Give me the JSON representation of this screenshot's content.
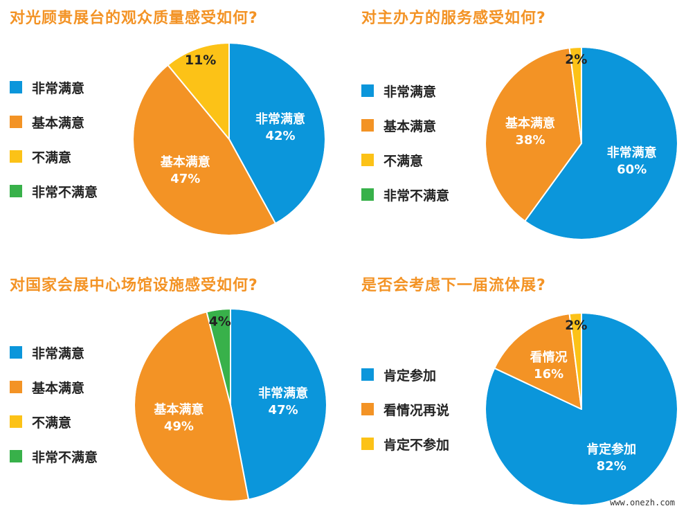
{
  "colors": {
    "title": "#f39325",
    "very_satisfied": "#0b96db",
    "basically_satisfied": "#f39325",
    "dissatisfied": "#fcc217",
    "very_dissatisfied": "#38b14a"
  },
  "chart_data": [
    {
      "type": "pie",
      "title": "对光顾贵展台的观众质量感受如何?",
      "legend": [
        "非常满意",
        "基本满意",
        "不满意",
        "非常不满意"
      ],
      "slices": [
        {
          "name": "非常满意",
          "value": 42,
          "label": "非常满意",
          "pct": "42%",
          "color": "#0b96db"
        },
        {
          "name": "基本满意",
          "value": 47,
          "label": "基本满意",
          "pct": "47%",
          "color": "#f39325"
        },
        {
          "name": "不满意",
          "value": 11,
          "label": "",
          "pct": "11%",
          "color": "#fcc217"
        }
      ]
    },
    {
      "type": "pie",
      "title": "对主办方的服务感受如何?",
      "legend": [
        "非常满意",
        "基本满意",
        "不满意",
        "非常不满意"
      ],
      "slices": [
        {
          "name": "非常满意",
          "value": 60,
          "label": "非常满意",
          "pct": "60%",
          "color": "#0b96db"
        },
        {
          "name": "基本满意",
          "value": 38,
          "label": "基本满意",
          "pct": "38%",
          "color": "#f39325"
        },
        {
          "name": "不满意",
          "value": 2,
          "label": "",
          "pct": "2%",
          "color": "#fcc217"
        }
      ]
    },
    {
      "type": "pie",
      "title": "对国家会展中心场馆设施感受如何?",
      "legend": [
        "非常满意",
        "基本满意",
        "不满意",
        "非常不满意"
      ],
      "slices": [
        {
          "name": "非常满意",
          "value": 47,
          "label": "非常满意",
          "pct": "47%",
          "color": "#0b96db"
        },
        {
          "name": "基本满意",
          "value": 49,
          "label": "基本满意",
          "pct": "49%",
          "color": "#f39325"
        },
        {
          "name": "非常不满意",
          "value": 4,
          "label": "",
          "pct": "4%",
          "color": "#38b14a"
        }
      ]
    },
    {
      "type": "pie",
      "title": "是否会考虑下一届流体展?",
      "legend": [
        "肯定参加",
        "看情况再说",
        "肯定不参加"
      ],
      "slices": [
        {
          "name": "肯定参加",
          "value": 82,
          "label": "肯定参加",
          "pct": "82%",
          "color": "#0b96db"
        },
        {
          "name": "看情况再说",
          "value": 16,
          "label": "看情况",
          "pct": "16%",
          "color": "#f39325"
        },
        {
          "name": "肯定不参加",
          "value": 2,
          "label": "",
          "pct": "2%",
          "color": "#fcc217"
        }
      ]
    }
  ],
  "watermark": "www.onezh.com"
}
